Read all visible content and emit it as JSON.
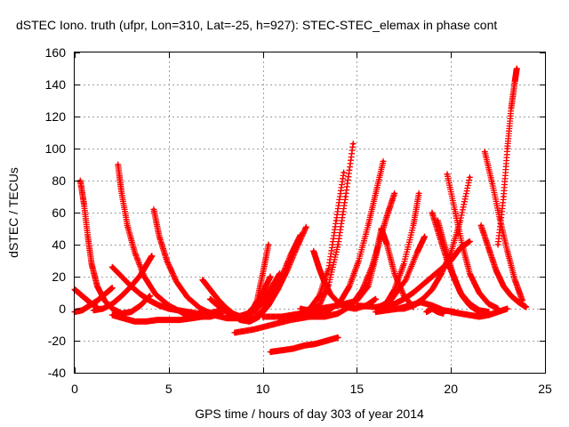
{
  "chart_data": {
    "type": "scatter",
    "title": "dSTEC Iono. truth (ufpr, Lon=310, Lat=-25, h=927): STEC-STEC_elemax in phase cont",
    "xlabel": "GPS time / hours of day 303 of year 2014",
    "ylabel": "dSTEC  / TECUs",
    "xlim": [
      0,
      25
    ],
    "ylim": [
      -40,
      160
    ],
    "xticks": [
      0,
      5,
      10,
      15,
      20,
      25
    ],
    "yticks": [
      -40,
      -20,
      0,
      20,
      40,
      60,
      80,
      100,
      120,
      140,
      160
    ],
    "xtick_labels": [
      "0",
      "5",
      "10",
      "15",
      "20",
      "25"
    ],
    "ytick_labels": [
      "-40",
      "-20",
      "0",
      "20",
      "40",
      "60",
      "80",
      "100",
      "120",
      "140",
      "160"
    ],
    "grid": true,
    "legend": "none",
    "marker": "plus",
    "color": "#ff0000",
    "series": [
      {
        "x": [
          0.3,
          0.5,
          0.7,
          0.9,
          1.2,
          1.6,
          2.0,
          2.5,
          3.0,
          3.5,
          4.0
        ],
        "y": [
          80,
          65,
          45,
          28,
          14,
          5,
          0,
          -3,
          -2,
          2,
          8
        ]
      },
      {
        "x": [
          2.3,
          2.5,
          2.8,
          3.2,
          3.7,
          4.3,
          5.0,
          5.8,
          6.5,
          7.2,
          7.8
        ],
        "y": [
          90,
          72,
          52,
          35,
          20,
          9,
          2,
          -3,
          -5,
          -5,
          -3
        ]
      },
      {
        "x": [
          4.2,
          4.5,
          4.9,
          5.4,
          6.0,
          6.7,
          7.4,
          8.1,
          8.8
        ],
        "y": [
          62,
          45,
          30,
          17,
          7,
          0,
          -4,
          -6,
          -6
        ]
      },
      {
        "x": [
          0.0,
          0.3,
          0.6,
          0.9,
          1.2
        ],
        "y": [
          12,
          9,
          6,
          3,
          1
        ]
      },
      {
        "x": [
          0.0,
          0.4,
          0.8,
          1.2,
          1.5,
          1.8,
          2.0
        ],
        "y": [
          -2,
          -1,
          2,
          5,
          8,
          11,
          13
        ]
      },
      {
        "x": [
          2.0,
          2.5,
          3.0,
          3.5,
          4.0,
          4.5,
          5.0,
          5.5,
          6.0,
          6.5,
          7.0,
          7.5,
          8.0
        ],
        "y": [
          26,
          20,
          14,
          9,
          5,
          2,
          0,
          -1,
          -2,
          -3,
          -3,
          -2,
          0
        ]
      },
      {
        "x": [
          1.0,
          1.5,
          2.0,
          2.5,
          3.0,
          3.5,
          3.8,
          4.1
        ],
        "y": [
          -1,
          0,
          3,
          8,
          14,
          21,
          27,
          33
        ]
      },
      {
        "x": [
          2.0,
          2.6,
          3.2,
          3.8,
          4.4,
          5.0,
          5.6,
          6.2,
          6.8,
          7.3,
          7.8
        ],
        "y": [
          -4,
          -6,
          -8,
          -8,
          -7,
          -7,
          -7,
          -6,
          -5,
          -4,
          -2
        ]
      },
      {
        "x": [
          6.8,
          7.2,
          7.6,
          8.0,
          8.4,
          8.8,
          9.2,
          9.6,
          10.0,
          10.4,
          10.9
        ],
        "y": [
          18,
          12,
          6,
          1,
          -3,
          -5,
          -4,
          -1,
          4,
          12,
          22
        ]
      },
      {
        "x": [
          7.2,
          7.7,
          8.2,
          8.7,
          9.2,
          9.6,
          10.0,
          10.4
        ],
        "y": [
          6,
          1,
          -3,
          -5,
          -3,
          2,
          10,
          20
        ]
      },
      {
        "x": [
          8.3,
          8.8,
          9.3,
          9.8,
          10.3,
          10.8,
          11.3,
          11.8,
          12.3
        ],
        "y": [
          -3,
          -7,
          -8,
          -5,
          2,
          12,
          24,
          38,
          51
        ]
      },
      {
        "x": [
          8.6,
          9.0,
          9.5,
          10.0,
          10.5,
          11.0,
          11.5,
          12.0
        ],
        "y": [
          -4,
          -7,
          -6,
          -1,
          8,
          20,
          34,
          46
        ]
      },
      {
        "x": [
          8.9,
          9.3,
          9.7,
          10.0,
          10.3
        ],
        "y": [
          -7,
          -4,
          5,
          22,
          40
        ]
      },
      {
        "x": [
          8.5,
          9.5,
          10.5,
          11.5,
          12.5,
          13.0
        ],
        "y": [
          -15,
          -13,
          -10,
          -7,
          -5,
          -4
        ]
      },
      {
        "x": [
          10.4,
          11.0,
          11.6,
          12.2,
          12.8,
          13.4,
          14.0
        ],
        "y": [
          -27,
          -26,
          -25,
          -23,
          -22,
          -20,
          -18
        ]
      },
      {
        "x": [
          10.0,
          11.0,
          12.0,
          12.5,
          13.0,
          13.5,
          14.0,
          14.4,
          14.8
        ],
        "y": [
          -5,
          -5,
          -4,
          -2,
          2,
          15,
          40,
          70,
          103
        ]
      },
      {
        "x": [
          11.0,
          12.0,
          12.5,
          13.0,
          13.5,
          13.9,
          14.3
        ],
        "y": [
          -5,
          -3,
          0,
          8,
          25,
          55,
          85
        ]
      },
      {
        "x": [
          12.0,
          12.8,
          13.5,
          14.1,
          14.6,
          15.1,
          15.6,
          16.0,
          16.4
        ],
        "y": [
          0,
          -2,
          -1,
          4,
          14,
          30,
          52,
          72,
          92
        ]
      },
      {
        "x": [
          12.5,
          13.3,
          14.0,
          14.7,
          15.3,
          15.8,
          16.2,
          16.6,
          17.0
        ],
        "y": [
          -5,
          -5,
          -3,
          2,
          12,
          26,
          42,
          58,
          72
        ]
      },
      {
        "x": [
          12.7,
          13.0,
          13.3,
          13.6,
          14.0,
          14.4,
          14.9,
          15.5,
          16.0
        ],
        "y": [
          36,
          25,
          16,
          9,
          4,
          1,
          0,
          2,
          6
        ]
      },
      {
        "x": [
          13.0,
          14.0,
          15.0,
          15.6,
          16.0,
          16.3,
          16.6,
          17.0,
          17.5,
          18.0
        ],
        "y": [
          0,
          2,
          5,
          14,
          32,
          50,
          40,
          22,
          8,
          1
        ]
      },
      {
        "x": [
          15.0,
          16.0,
          17.0,
          17.5,
          18.0,
          18.5,
          19.0,
          19.5,
          20.0,
          20.5,
          21.0
        ],
        "y": [
          2,
          1,
          3,
          6,
          10,
          15,
          20,
          25,
          30,
          38,
          42
        ]
      },
      {
        "x": [
          16.5,
          17.0,
          17.5,
          18.0,
          18.3
        ],
        "y": [
          2,
          12,
          28,
          52,
          72
        ]
      },
      {
        "x": [
          17.0,
          17.5,
          18.0,
          18.5,
          19.0,
          19.5,
          20.0,
          20.5,
          21.0
        ],
        "y": [
          0,
          0,
          2,
          6,
          12,
          22,
          35,
          55,
          82
        ]
      },
      {
        "x": [
          16.0,
          16.8,
          17.6,
          18.2,
          18.6
        ],
        "y": [
          0,
          5,
          18,
          35,
          45
        ]
      },
      {
        "x": [
          19.0,
          19.4,
          19.8,
          20.2,
          20.6,
          21.0,
          21.5,
          22.0
        ],
        "y": [
          60,
          45,
          30,
          18,
          8,
          2,
          -2,
          -2
        ]
      },
      {
        "x": [
          19.3,
          19.7,
          20.1,
          20.5,
          21.0,
          21.5,
          22.0
        ],
        "y": [
          55,
          38,
          22,
          10,
          3,
          -1,
          -2
        ]
      },
      {
        "x": [
          19.8,
          20.2,
          20.6,
          21.0,
          21.5,
          22.0,
          22.5
        ],
        "y": [
          84,
          62,
          40,
          22,
          10,
          3,
          0
        ]
      },
      {
        "x": [
          21.8,
          22.2,
          22.6,
          23.0,
          23.4,
          23.8
        ],
        "y": [
          98,
          78,
          56,
          36,
          18,
          5
        ]
      },
      {
        "x": [
          21.6,
          22.0,
          22.4,
          22.8,
          23.2,
          23.6,
          24.0
        ],
        "y": [
          52,
          38,
          24,
          14,
          8,
          4,
          1
        ]
      },
      {
        "x": [
          22.5,
          22.8,
          23.0,
          23.2,
          23.4,
          23.5
        ],
        "y": [
          40,
          70,
          100,
          125,
          142,
          150
        ]
      },
      {
        "x": [
          20.0,
          20.5,
          21.0,
          21.5,
          22.0,
          22.5,
          23.0
        ],
        "y": [
          -2,
          -3,
          -4,
          -5,
          -4,
          -2,
          0
        ]
      },
      {
        "x": [
          16.0,
          16.6,
          17.2,
          17.8,
          18.4,
          19.0,
          19.6,
          20.2
        ],
        "y": [
          -2,
          -1,
          0,
          2,
          4,
          2,
          -1,
          -2
        ]
      },
      {
        "x": [
          18.7,
          19.0,
          19.3,
          19.6
        ],
        "y": [
          -2,
          0,
          -2,
          -3
        ]
      }
    ]
  }
}
